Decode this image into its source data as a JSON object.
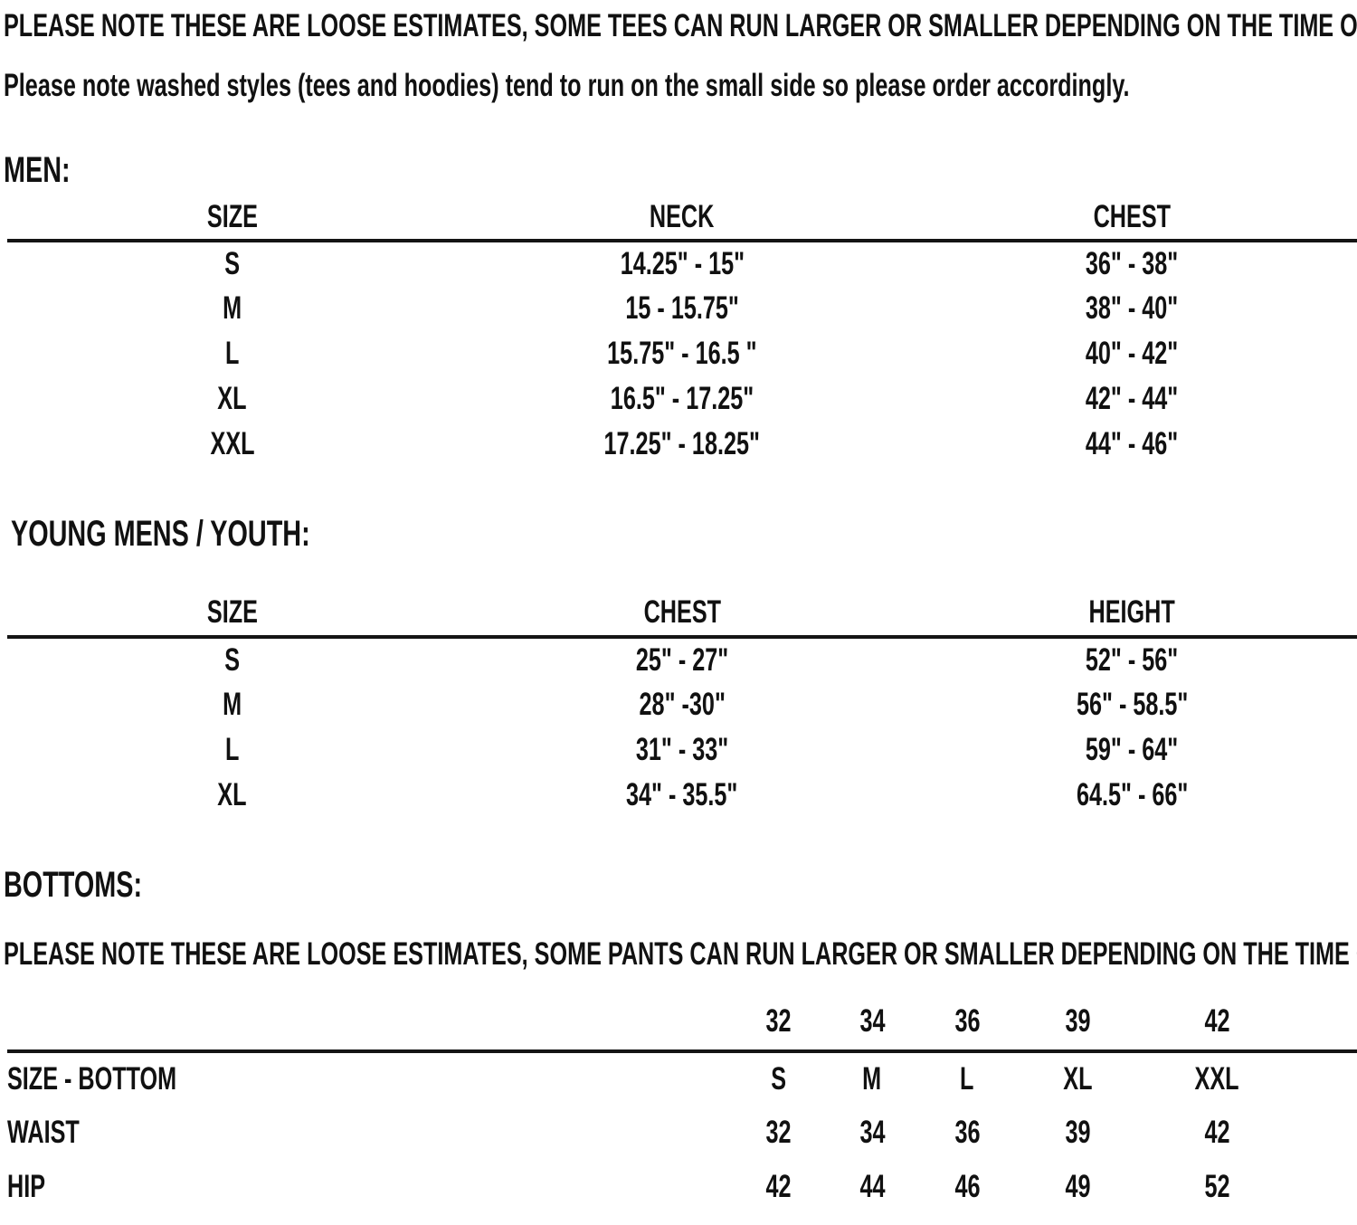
{
  "colors": {
    "background": "#ffffff",
    "text": "#111111",
    "rule": "#141414"
  },
  "notes": {
    "tees": "PLEASE NOTE THESE ARE LOOSE ESTIMATES, SOME TEES CAN RUN LARGER OR SMALLER DEPENDING ON THE TIME OF YEAR/COLOR.",
    "washed": "Please note washed styles (tees and hoodies) tend to run on the small side so please order accordingly.",
    "pants": "PLEASE NOTE THESE ARE LOOSE ESTIMATES, SOME PANTS CAN RUN LARGER OR SMALLER DEPENDING ON THE TIME OF YEAR/COLOR."
  },
  "sections": {
    "men": {
      "heading": "MEN:",
      "columns": [
        "SIZE",
        "NECK",
        "CHEST"
      ],
      "rows": [
        [
          "S",
          "14.25\" - 15\"",
          "36\" - 38\""
        ],
        [
          "M",
          "15 - 15.75\"",
          "38\" - 40\""
        ],
        [
          "L",
          "15.75\" - 16.5 \"",
          "40\" - 42\""
        ],
        [
          "XL",
          "16.5\" - 17.25\"",
          "42\" - 44\""
        ],
        [
          "XXL",
          "17.25\" - 18.25\"",
          "44\" - 46\""
        ]
      ]
    },
    "youth": {
      "heading": "YOUNG MENS / YOUTH:",
      "columns": [
        "SIZE",
        "CHEST",
        "HEIGHT"
      ],
      "rows": [
        [
          "S",
          "25\" - 27\"",
          "52\" - 56\""
        ],
        [
          "M",
          "28\" -30\"",
          "56\" - 58.5\""
        ],
        [
          "L",
          "31\" - 33\"",
          "59\" - 64\""
        ],
        [
          "XL",
          "34\" - 35.5\"",
          "64.5\" - 66\""
        ]
      ]
    },
    "bottoms": {
      "heading": "BOTTOMS:",
      "top_numbers": [
        "32",
        "34",
        "36",
        "39",
        "42"
      ],
      "rows": [
        {
          "label": "SIZE - BOTTOM",
          "values": [
            "S",
            "M",
            "L",
            "XL",
            "XXL"
          ]
        },
        {
          "label": "WAIST",
          "values": [
            "32",
            "34",
            "36",
            "39",
            "42"
          ]
        },
        {
          "label": "HIP",
          "values": [
            "42",
            "44",
            "46",
            "49",
            "52"
          ]
        }
      ]
    }
  }
}
